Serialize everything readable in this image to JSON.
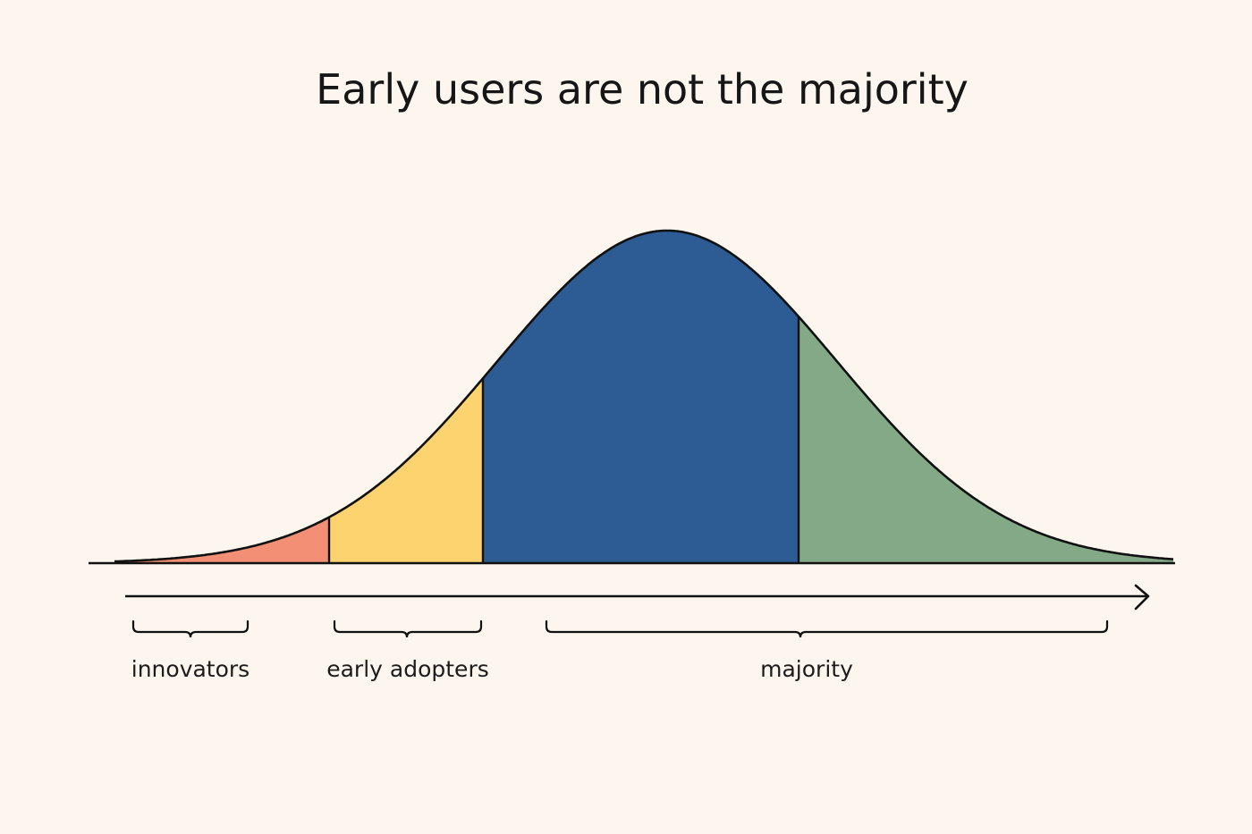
{
  "title": "Early users are not the majority",
  "colors": {
    "background": "#fcf6ee",
    "outline": "#111111",
    "innovators": "#f38f74",
    "early_adopters": "#fcd36f",
    "majority_early": "#2d5c95",
    "majority_late": "#84a987"
  },
  "segments": [
    {
      "id": "innovators",
      "color_key": "innovators"
    },
    {
      "id": "early_adopters",
      "color_key": "early_adopters"
    },
    {
      "id": "majority_early",
      "color_key": "majority_early"
    },
    {
      "id": "majority_late",
      "color_key": "majority_late"
    }
  ],
  "groups": [
    {
      "id": "innovators",
      "label": "innovators"
    },
    {
      "id": "early_adopters",
      "label": "early adopters"
    },
    {
      "id": "majority",
      "label": "majority"
    }
  ],
  "axis": {
    "direction": "right-arrow"
  }
}
